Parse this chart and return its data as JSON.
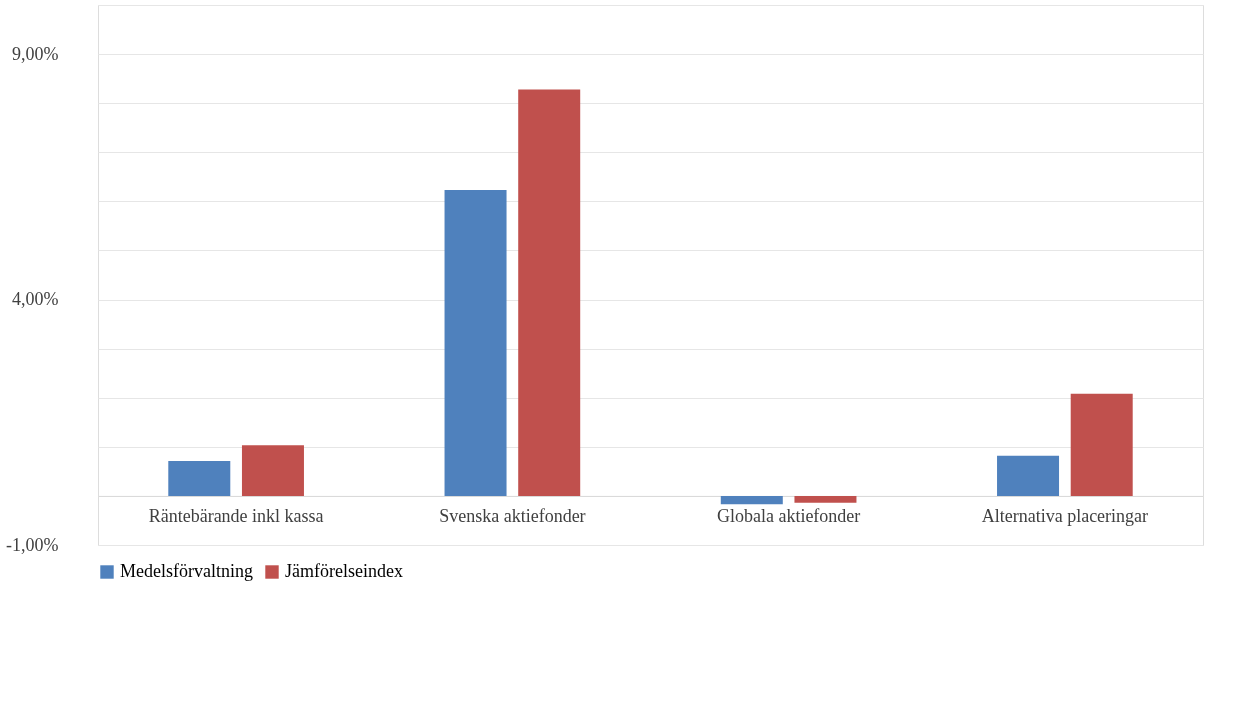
{
  "chart_data": {
    "type": "bar",
    "categories": [
      "Räntebärande inkl kassa",
      "Svenska aktiefonder",
      "Globala aktiefonder",
      "Alternativa placeringar"
    ],
    "series": [
      {
        "name": "Medelsförvaltning",
        "color": "#4f81bd",
        "values": [
          0.71,
          6.23,
          -0.17,
          0.82
        ]
      },
      {
        "name": "Jämförelseindex",
        "color": "#c0504d",
        "values": [
          1.03,
          8.28,
          -0.14,
          2.08
        ]
      }
    ],
    "ylim": [
      -1,
      10
    ],
    "yticks": [
      {
        "value": -1,
        "label": "-1,00%"
      },
      {
        "value": 0,
        "label": null
      },
      {
        "value": 1,
        "label": null
      },
      {
        "value": 2,
        "label": null
      },
      {
        "value": 3,
        "label": null
      },
      {
        "value": 4,
        "label": "4,00%"
      },
      {
        "value": 5,
        "label": null
      },
      {
        "value": 6,
        "label": null
      },
      {
        "value": 7,
        "label": null
      },
      {
        "value": 8,
        "label": null
      },
      {
        "value": 9,
        "label": "9,00%"
      },
      {
        "value": 10,
        "label": null
      }
    ],
    "grid": "y",
    "legend": "bottom"
  }
}
